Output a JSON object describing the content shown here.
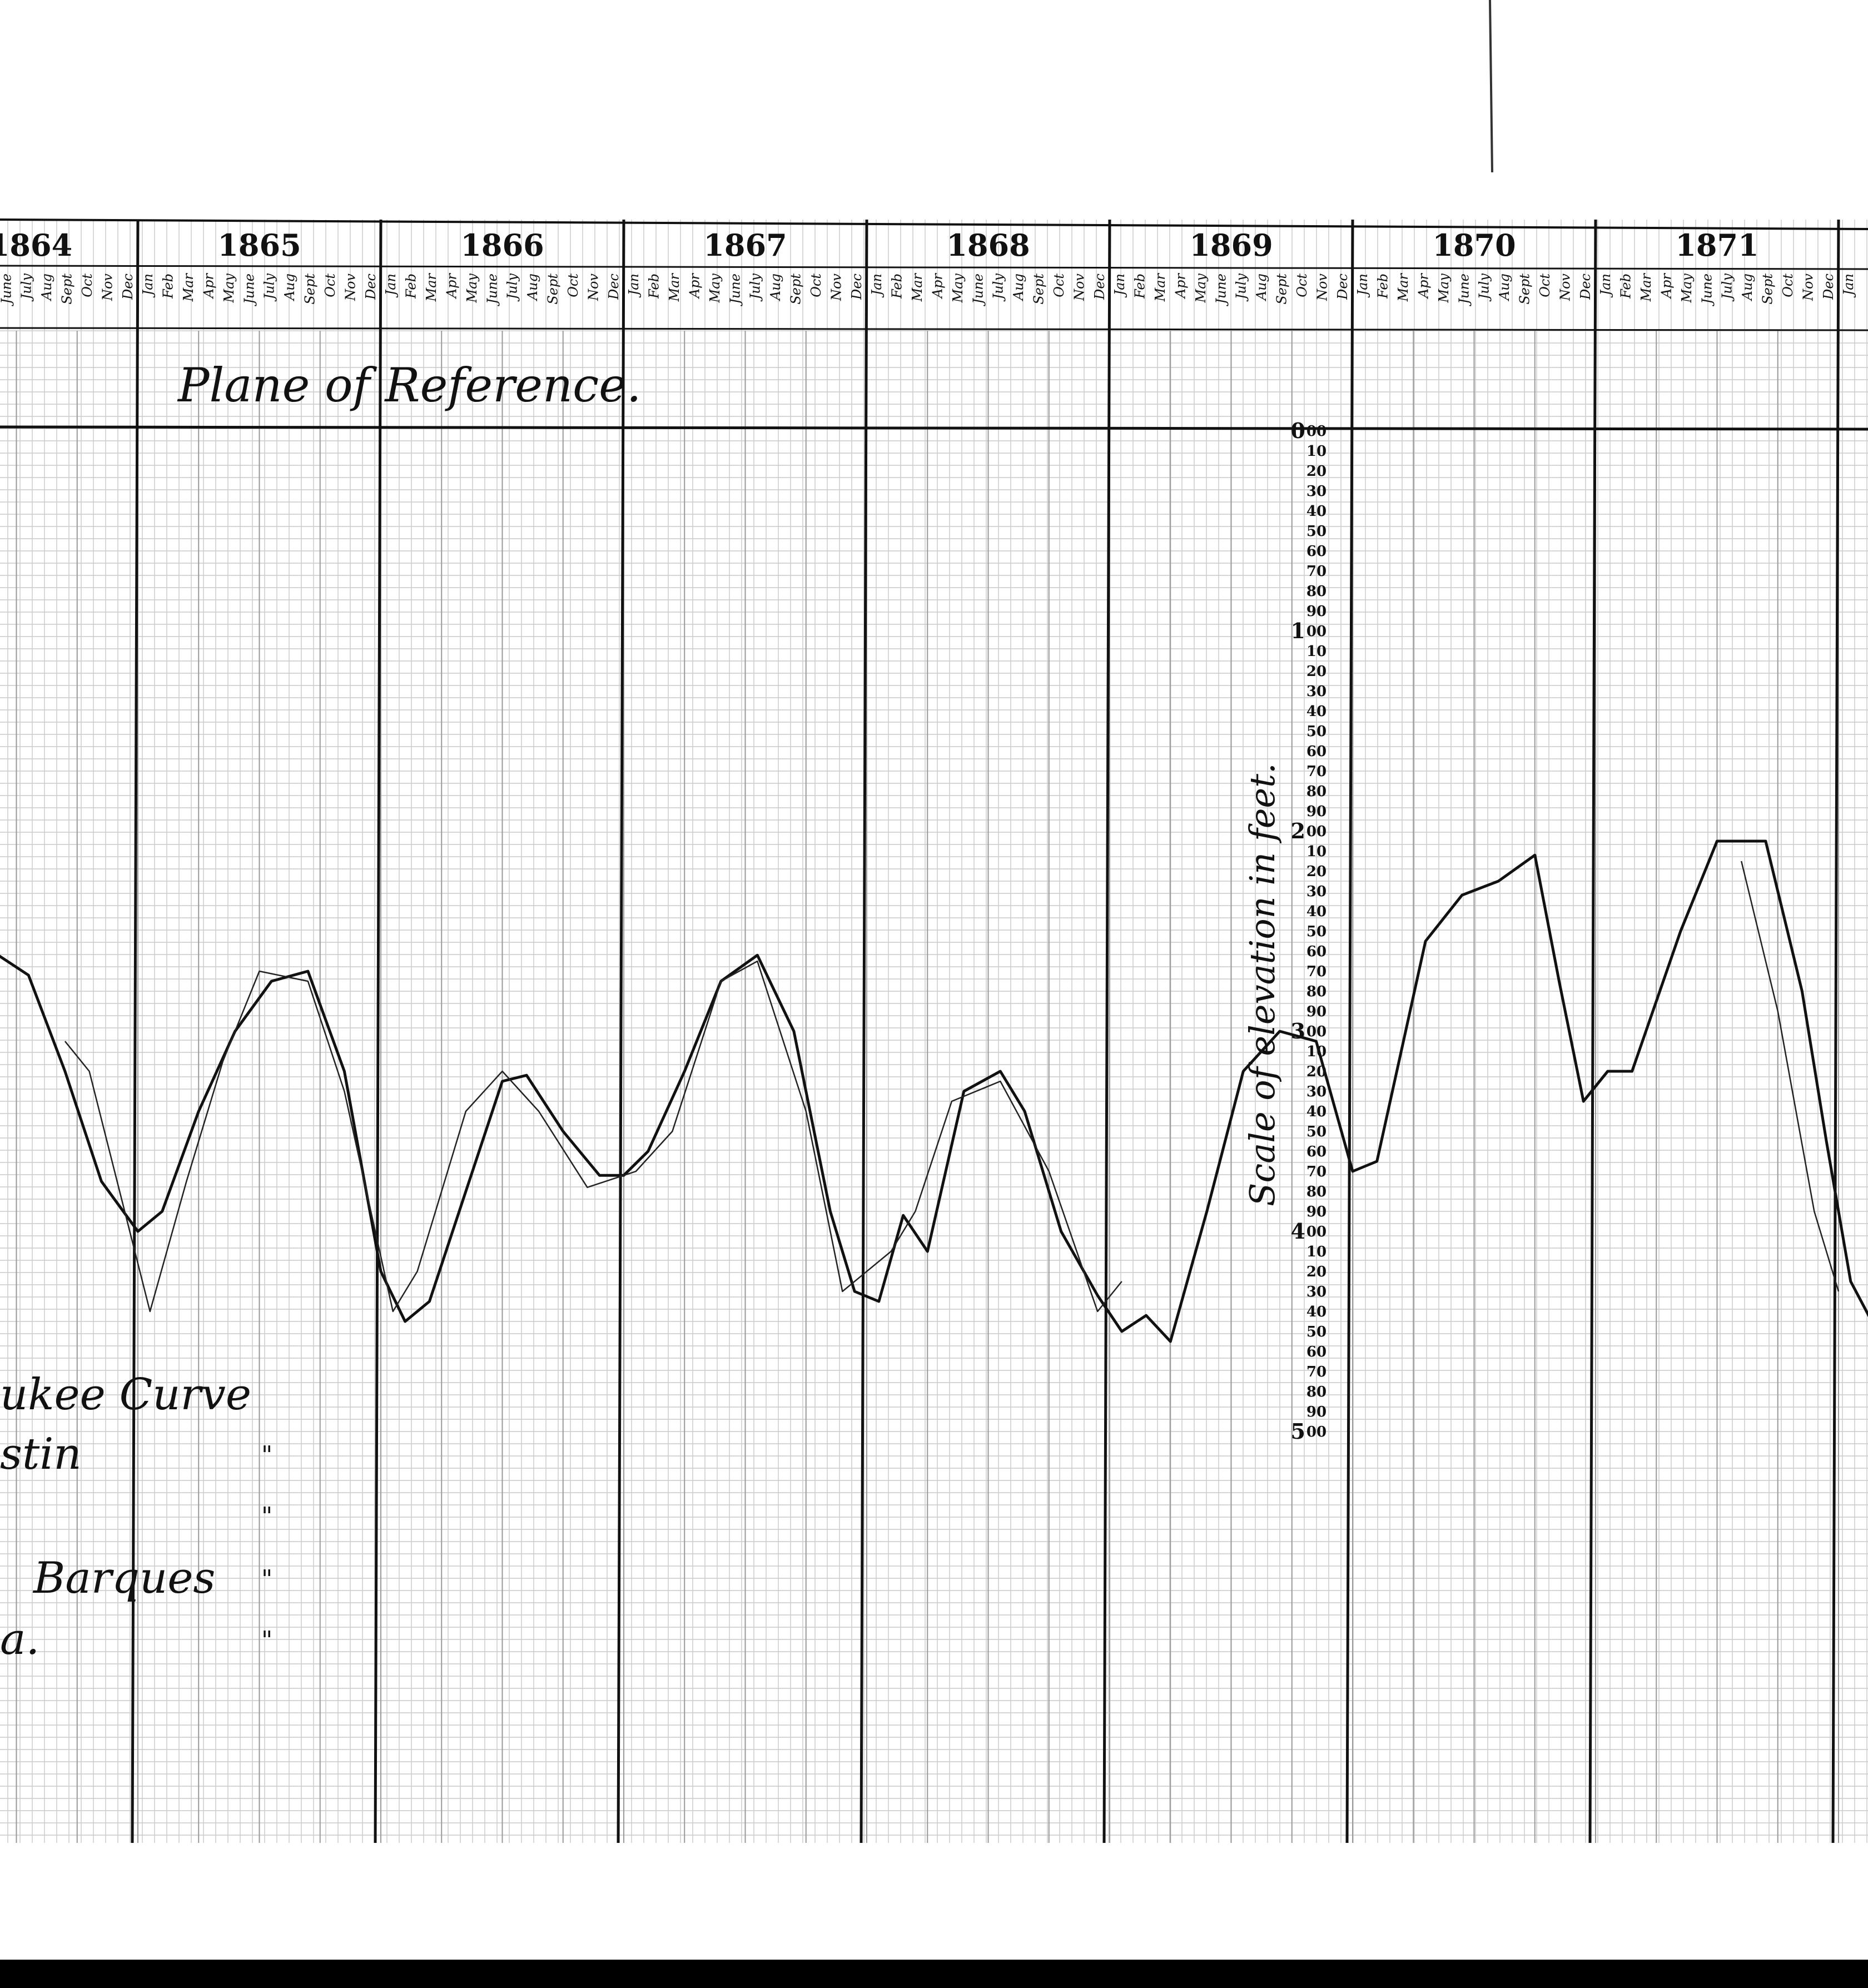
{
  "chart_data": {
    "type": "line",
    "title": "Plane of Reference.",
    "ylabel": "Scale of elevation in feet.",
    "y_axis": {
      "major_labels": [
        "0",
        "1",
        "2",
        "3",
        "4",
        "5"
      ],
      "minor_labels": [
        "00",
        "10",
        "20",
        "30",
        "40",
        "50",
        "60",
        "70",
        "80",
        "90"
      ]
    },
    "years": [
      "1864",
      "1865",
      "1866",
      "1867",
      "1868",
      "1869",
      "1870",
      "1871"
    ],
    "months": [
      "Jan",
      "Feb",
      "Mar",
      "Apr",
      "May",
      "June",
      "July",
      "Aug",
      "Sept",
      "Oct",
      "Nov",
      "Dec"
    ],
    "months_1864_partial": [
      "June",
      "July",
      "Aug",
      "Sept",
      "Oct",
      "Nov",
      "Dec"
    ],
    "legend": [
      {
        "text": "ukee  Curve",
        "mark": ""
      },
      {
        "text": "stin",
        "mark": "\""
      },
      {
        "text": "",
        "mark": "\""
      },
      {
        "text": "Barques",
        "mark": "\""
      },
      {
        "text": "a.",
        "mark": "\""
      }
    ],
    "grid": true,
    "series": [
      {
        "style": "bold",
        "points": [
          [
            1864.4,
            260
          ],
          [
            1864.55,
            272
          ],
          [
            1864.7,
            320
          ],
          [
            1864.85,
            375
          ],
          [
            1865.0,
            400
          ],
          [
            1865.1,
            390
          ],
          [
            1865.25,
            340
          ],
          [
            1865.4,
            300
          ],
          [
            1865.55,
            275
          ],
          [
            1865.7,
            270
          ],
          [
            1865.85,
            320
          ],
          [
            1866.0,
            420
          ],
          [
            1866.1,
            445
          ],
          [
            1866.2,
            435
          ],
          [
            1866.35,
            380
          ],
          [
            1866.5,
            325
          ],
          [
            1866.6,
            322
          ],
          [
            1866.75,
            350
          ],
          [
            1866.9,
            372
          ],
          [
            1867.0,
            372
          ],
          [
            1867.1,
            360
          ],
          [
            1867.25,
            320
          ],
          [
            1867.4,
            275
          ],
          [
            1867.55,
            262
          ],
          [
            1867.7,
            300
          ],
          [
            1867.85,
            390
          ],
          [
            1867.95,
            430
          ],
          [
            1868.05,
            435
          ],
          [
            1868.15,
            392
          ],
          [
            1868.25,
            410
          ],
          [
            1868.4,
            330
          ],
          [
            1868.55,
            320
          ],
          [
            1868.65,
            340
          ],
          [
            1868.8,
            400
          ],
          [
            1868.95,
            432
          ],
          [
            1869.05,
            450
          ],
          [
            1869.15,
            442
          ],
          [
            1869.25,
            455
          ],
          [
            1869.4,
            390
          ],
          [
            1869.55,
            320
          ],
          [
            1869.7,
            300
          ],
          [
            1869.85,
            305
          ],
          [
            1870.0,
            370
          ],
          [
            1870.1,
            365
          ],
          [
            1870.3,
            255
          ],
          [
            1870.45,
            232
          ],
          [
            1870.6,
            225
          ],
          [
            1870.75,
            212
          ],
          [
            1870.85,
            275
          ],
          [
            1870.95,
            335
          ],
          [
            1871.05,
            320
          ],
          [
            1871.15,
            320
          ],
          [
            1871.35,
            250
          ],
          [
            1871.5,
            205
          ],
          [
            1871.7,
            205
          ],
          [
            1871.85,
            280
          ],
          [
            1871.95,
            355
          ],
          [
            1872.05,
            425
          ],
          [
            1872.15,
            448
          ]
        ]
      },
      {
        "style": "thin",
        "points": [
          [
            1864.7,
            305
          ],
          [
            1864.8,
            320
          ],
          [
            1865.05,
            440
          ],
          [
            1865.2,
            375
          ],
          [
            1865.35,
            315
          ],
          [
            1865.5,
            270
          ],
          [
            1865.7,
            275
          ],
          [
            1865.85,
            330
          ],
          [
            1866.05,
            440
          ],
          [
            1866.15,
            420
          ],
          [
            1866.35,
            340
          ],
          [
            1866.5,
            320
          ],
          [
            1866.65,
            340
          ],
          [
            1866.85,
            378
          ],
          [
            1867.05,
            370
          ],
          [
            1867.2,
            350
          ],
          [
            1867.4,
            275
          ],
          [
            1867.55,
            265
          ],
          [
            1867.75,
            340
          ],
          [
            1867.9,
            430
          ],
          [
            1868.1,
            410
          ],
          [
            1868.2,
            390
          ],
          [
            1868.35,
            335
          ],
          [
            1868.55,
            325
          ],
          [
            1868.75,
            370
          ],
          [
            1868.95,
            440
          ],
          [
            1869.05,
            425
          ],
          [
            1871.6,
            215
          ],
          [
            1871.75,
            290
          ],
          [
            1871.9,
            390
          ],
          [
            1872.0,
            430
          ]
        ]
      }
    ]
  }
}
